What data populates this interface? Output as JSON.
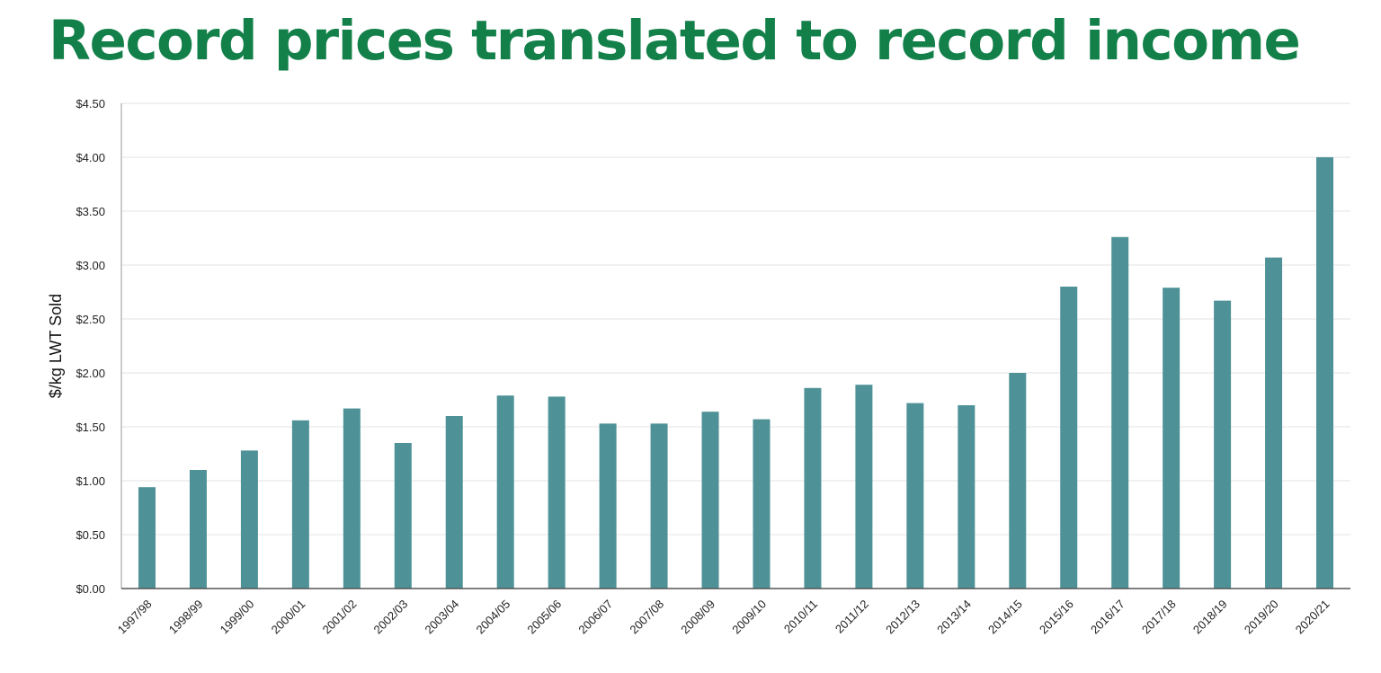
{
  "slide": {
    "title": "Record prices translated to record income",
    "title_color": "#13804a"
  },
  "chart_data": {
    "type": "bar",
    "title": "",
    "xlabel": "",
    "ylabel": "$/kg LWT Sold",
    "ylim": [
      0,
      4.5
    ],
    "yticks": [
      0,
      0.5,
      1.0,
      1.5,
      2.0,
      2.5,
      3.0,
      3.5,
      4.0,
      4.5
    ],
    "ytick_labels": [
      "$0.00",
      "$0.50",
      "$1.00",
      "$1.50",
      "$2.00",
      "$2.50",
      "$3.00",
      "$3.50",
      "$4.00",
      "$4.50"
    ],
    "grid": true,
    "legend": "none",
    "bar_color": "#4e9297",
    "categories": [
      "1997/98",
      "1998/99",
      "1999/00",
      "2000/01",
      "2001/02",
      "2002/03",
      "2003/04",
      "2004/05",
      "2005/06",
      "2006/07",
      "2007/08",
      "2008/09",
      "2009/10",
      "2010/11",
      "2011/12",
      "2012/13",
      "2013/14",
      "2014/15",
      "2015/16",
      "2016/17",
      "2017/18",
      "2018/19",
      "2019/20",
      "2020/21"
    ],
    "values": [
      0.94,
      1.1,
      1.28,
      1.56,
      1.67,
      1.35,
      1.6,
      1.79,
      1.78,
      1.53,
      1.53,
      1.64,
      1.57,
      1.86,
      1.89,
      1.72,
      1.7,
      2.0,
      2.8,
      3.26,
      2.79,
      2.67,
      3.07,
      4.0
    ]
  }
}
